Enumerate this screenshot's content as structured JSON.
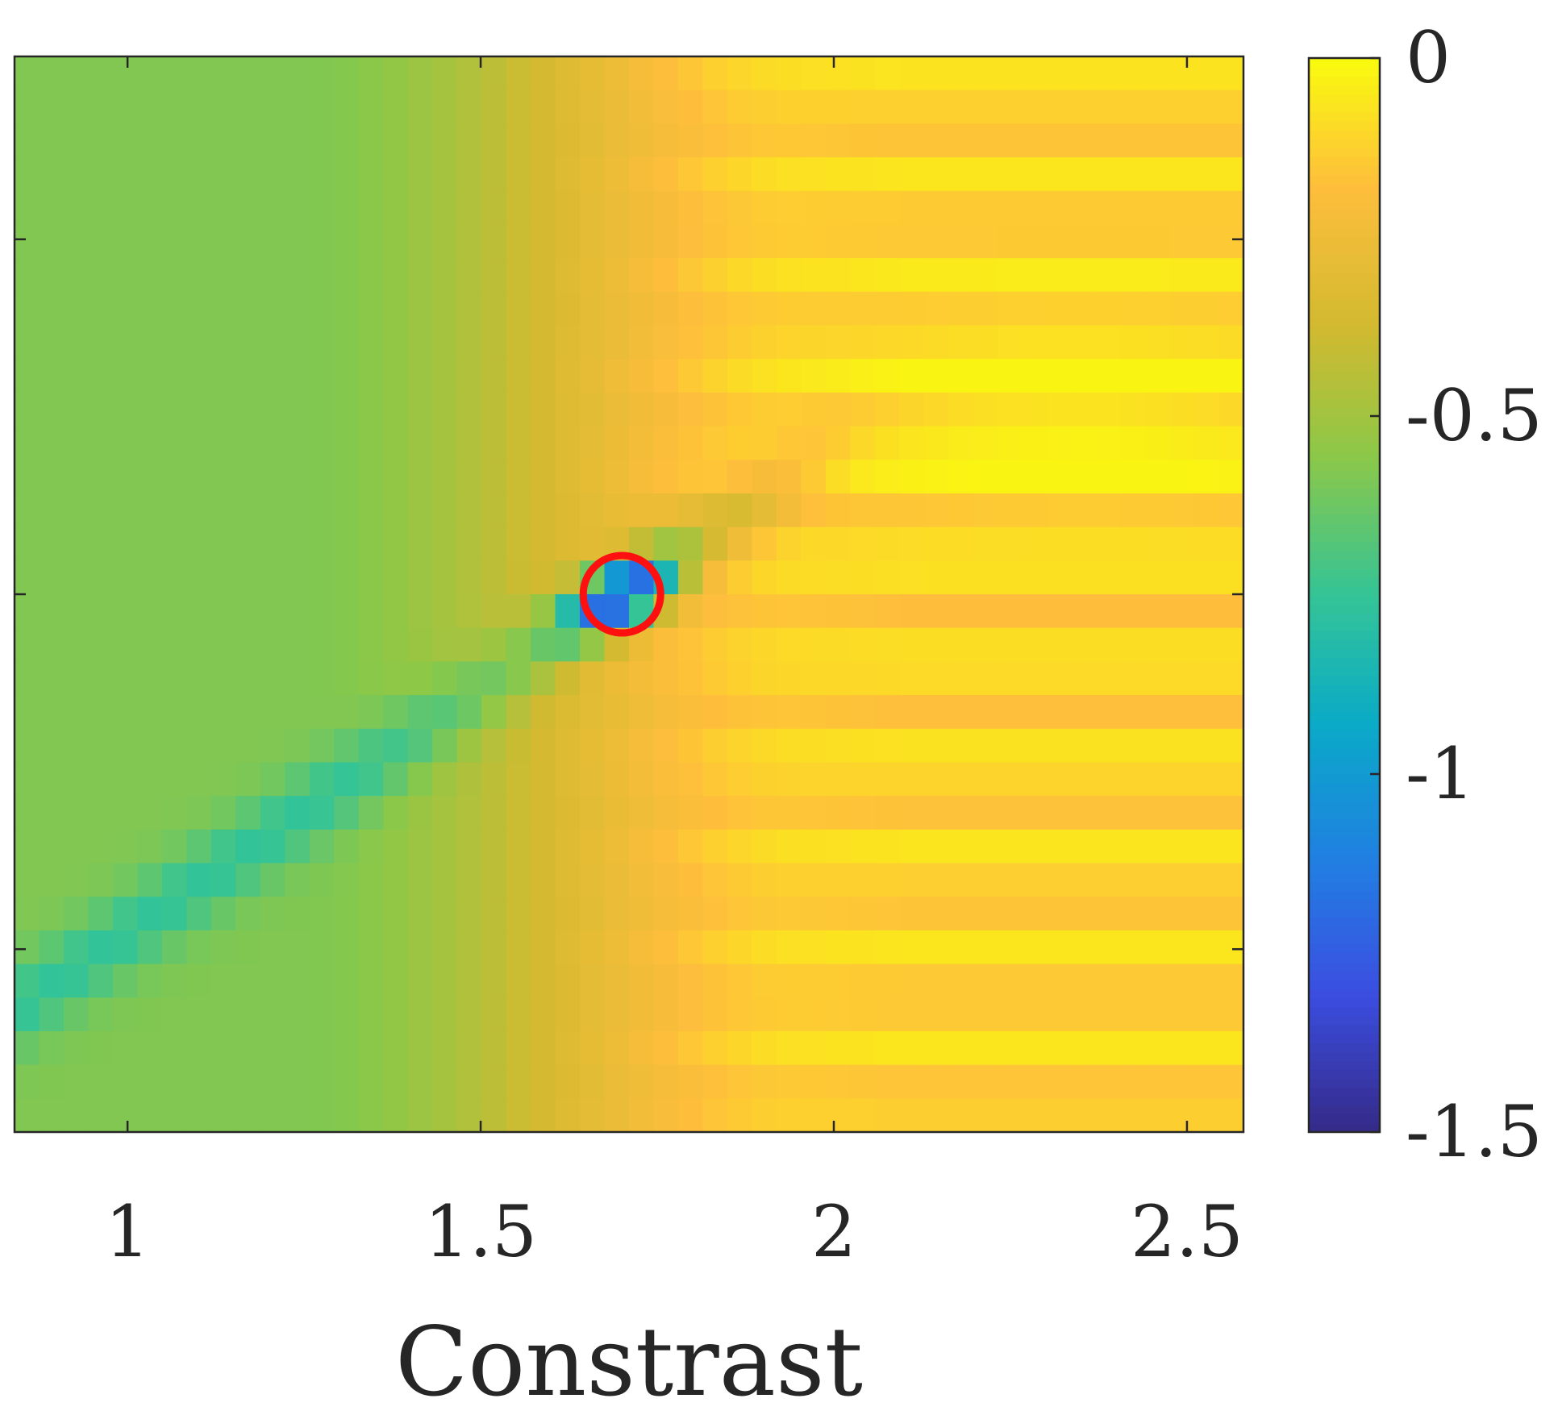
{
  "chart_data": {
    "type": "heatmap",
    "title": "",
    "xlabel": "Constrast",
    "ylabel": "",
    "xlim": [
      0.84,
      2.58
    ],
    "x_ticks": [
      1,
      1.5,
      2,
      2.5
    ],
    "x_tick_labels": [
      "1",
      "1.5",
      "2",
      "2.5"
    ],
    "y_tick_labels": [],
    "grid": false,
    "colormap": "parula",
    "colorbar": {
      "location": "right",
      "range": [
        -1.5,
        0
      ],
      "ticks": [
        0,
        -0.5,
        -1,
        -1.5
      ],
      "tick_labels": [
        "0",
        "-0.5",
        "-1",
        "-1.5"
      ]
    },
    "grid_size": {
      "columns": 50,
      "rows": 32
    },
    "value_pattern": {
      "description": "approximate field: values near -0.55 at low contrast (left), rising to about -0.05 at high contrast in the upper-right band; a diagonal trough from upper-left to the marked minimum",
      "minimum": {
        "x": 1.7,
        "value": -1.45,
        "row_fraction": 0.5
      },
      "maximum_region": {
        "x": 2.35,
        "value": -0.05,
        "row_fraction": 0.33
      }
    },
    "marker": {
      "shape": "circle",
      "color": "#ff1010",
      "x": 1.7,
      "row_fraction": 0.5
    }
  }
}
